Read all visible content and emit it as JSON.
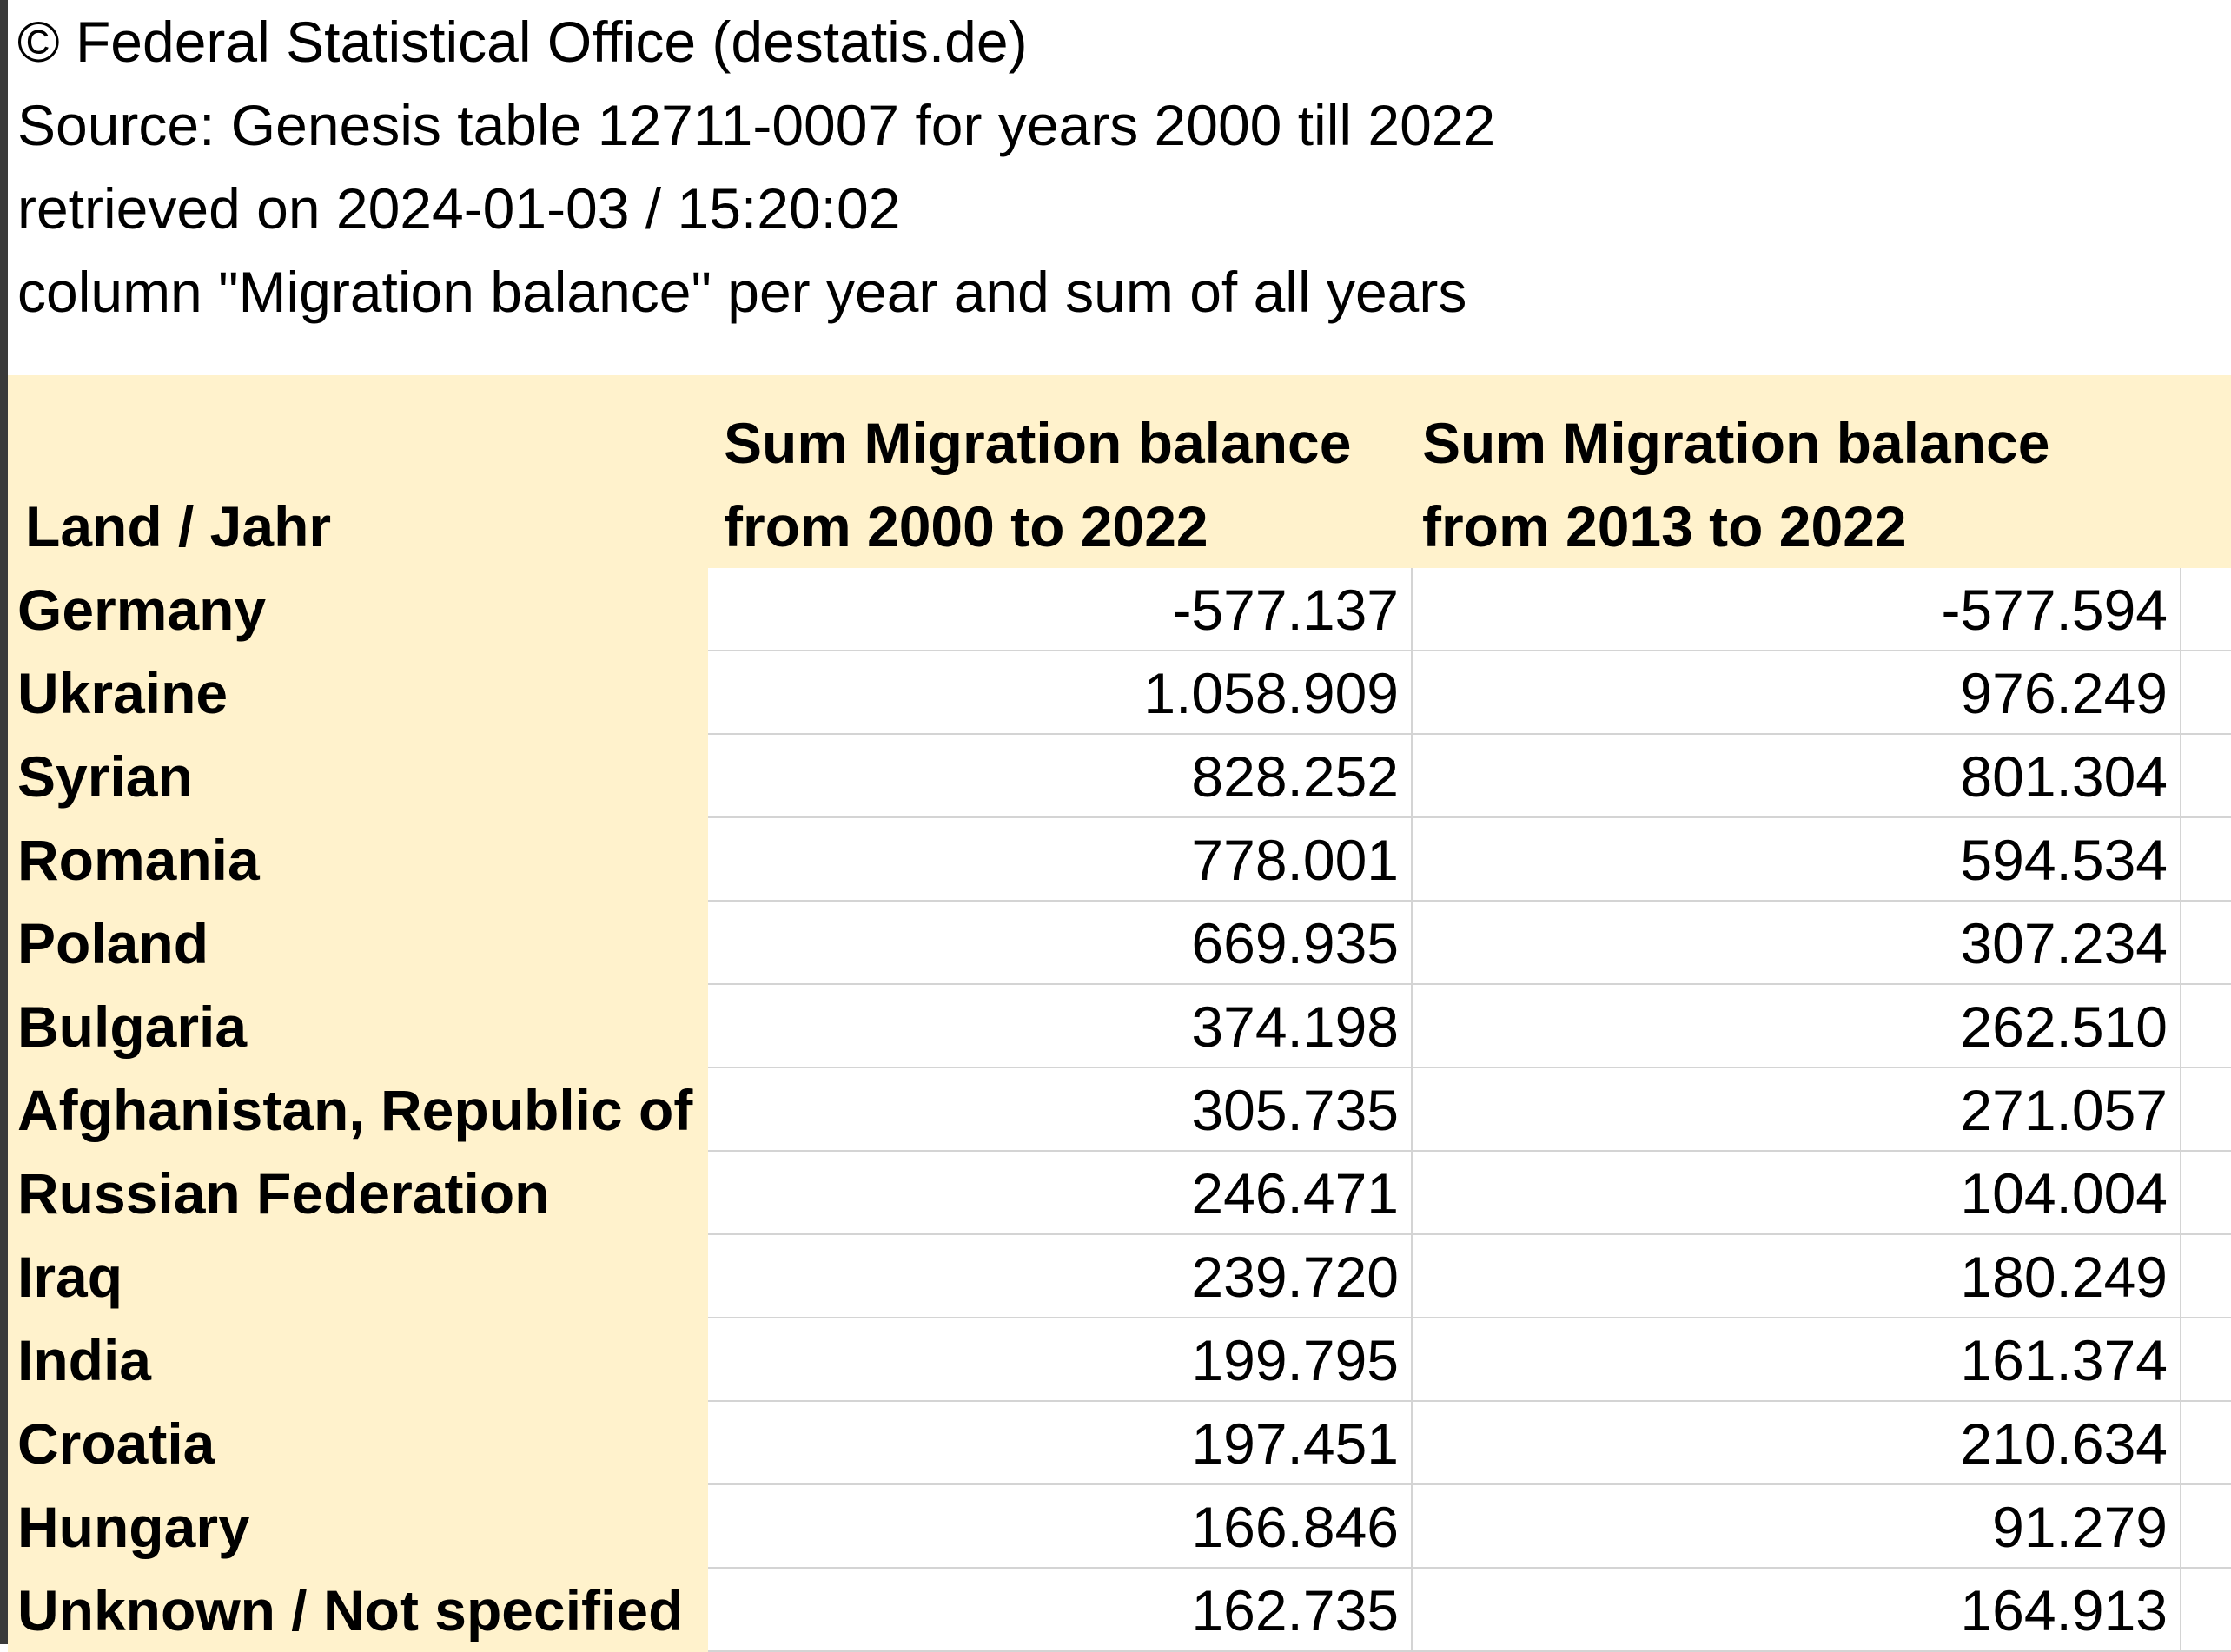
{
  "meta": {
    "copyright": "© Federal Statistical Office (destatis.de)",
    "source": "Source: Genesis table 12711-0007 for years 2000 till 2022",
    "retrieved": "retrieved on  2024-01-03 / 15:20:02",
    "description": "column \"Migration balance\" per year and sum of all years"
  },
  "table": {
    "header_country": "Land / Jahr",
    "header_col1_line1": "Sum Migration balance",
    "header_col1_line2": "from 2000 to 2022",
    "header_col2_line1": "Sum Migration balance",
    "header_col2_line2": "from 2013 to 2022",
    "rows": [
      {
        "country": "Germany",
        "sum_2000_2022": "-577.137",
        "sum_2013_2022": "-577.594"
      },
      {
        "country": "Ukraine",
        "sum_2000_2022": "1.058.909",
        "sum_2013_2022": "976.249"
      },
      {
        "country": "Syrian",
        "sum_2000_2022": "828.252",
        "sum_2013_2022": "801.304"
      },
      {
        "country": "Romania",
        "sum_2000_2022": "778.001",
        "sum_2013_2022": "594.534"
      },
      {
        "country": "Poland",
        "sum_2000_2022": "669.935",
        "sum_2013_2022": "307.234"
      },
      {
        "country": "Bulgaria",
        "sum_2000_2022": "374.198",
        "sum_2013_2022": "262.510"
      },
      {
        "country": "Afghanistan, Republic of",
        "sum_2000_2022": "305.735",
        "sum_2013_2022": "271.057"
      },
      {
        "country": "Russian Federation",
        "sum_2000_2022": "246.471",
        "sum_2013_2022": "104.004"
      },
      {
        "country": "Iraq",
        "sum_2000_2022": "239.720",
        "sum_2013_2022": "180.249"
      },
      {
        "country": "India",
        "sum_2000_2022": "199.795",
        "sum_2013_2022": "161.374"
      },
      {
        "country": "Croatia",
        "sum_2000_2022": "197.451",
        "sum_2013_2022": "210.634"
      },
      {
        "country": "Hungary",
        "sum_2000_2022": "166.846",
        "sum_2013_2022": "91.279"
      },
      {
        "country": "Unknown / Not specified",
        "sum_2000_2022": "162.735",
        "sum_2013_2022": "164.913"
      }
    ]
  },
  "colors": {
    "header_fill": "#fff2cc",
    "grid_line": "#d4d4d4",
    "left_edge": "#3a3a3a"
  }
}
